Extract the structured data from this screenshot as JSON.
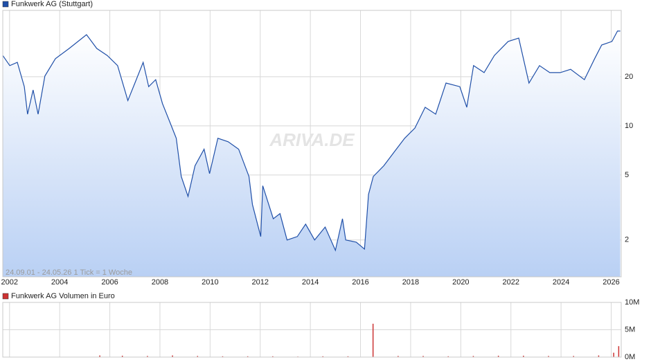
{
  "chart_data": [
    {
      "type": "line",
      "subtitle": "24.09.01 - 24.05.26   1 Tick = 1 Woche",
      "watermark": "ARIVA.DE",
      "log_scale": true,
      "grid": true,
      "legend": "top-left",
      "x": [
        2001.73,
        2002.01,
        2002.31,
        2002.59,
        2002.72,
        2002.94,
        2003.14,
        2003.41,
        2003.83,
        2004.38,
        2005.07,
        2005.48,
        2005.9,
        2006.31,
        2006.72,
        2007.0,
        2007.33,
        2007.55,
        2007.83,
        2008.1,
        2008.38,
        2008.65,
        2008.85,
        2009.12,
        2009.4,
        2009.76,
        2009.98,
        2010.31,
        2010.72,
        2011.14,
        2011.55,
        2011.69,
        2012.02,
        2012.1,
        2012.52,
        2012.79,
        2013.07,
        2013.48,
        2013.81,
        2014.17,
        2014.59,
        2015.0,
        2015.28,
        2015.41,
        2015.83,
        2016.16,
        2016.32,
        2016.51,
        2016.93,
        2017.34,
        2017.76,
        2018.17,
        2018.58,
        2019.0,
        2019.41,
        2019.96,
        2020.24,
        2020.51,
        2020.93,
        2021.34,
        2021.89,
        2022.31,
        2022.72,
        2023.14,
        2023.55,
        2023.97,
        2024.38,
        2024.93,
        2025.34,
        2025.62,
        2026.03,
        2026.25,
        2026.36
      ],
      "series": [
        {
          "name": "Funkwerk AG (Stuttgart)",
          "color": "#1f4fa8",
          "values": [
            27.0,
            23.4,
            24.5,
            17.4,
            11.8,
            16.6,
            11.8,
            20.2,
            25.8,
            29.8,
            36.2,
            29.8,
            27.0,
            23.4,
            14.3,
            18.3,
            24.5,
            17.4,
            19.2,
            13.7,
            10.7,
            8.4,
            4.9,
            3.7,
            5.7,
            7.2,
            5.1,
            8.4,
            8.0,
            7.2,
            4.9,
            3.3,
            2.1,
            4.3,
            2.7,
            2.9,
            2.0,
            2.1,
            2.5,
            2.0,
            2.4,
            1.73,
            2.7,
            2.0,
            1.94,
            1.76,
            3.8,
            4.9,
            5.7,
            6.9,
            8.4,
            9.7,
            13.0,
            11.8,
            18.3,
            17.4,
            13.0,
            23.4,
            21.2,
            27.0,
            32.9,
            34.5,
            18.3,
            23.4,
            21.2,
            21.2,
            22.2,
            19.2,
            25.8,
            31.3,
            32.9,
            38.1,
            38.1
          ]
        }
      ],
      "xlim": [
        2001.73,
        2026.4
      ],
      "xticks": [
        2002,
        2004,
        2006,
        2008,
        2010,
        2012,
        2014,
        2016,
        2018,
        2020,
        2022,
        2024,
        2026
      ],
      "ylim": [
        1.19,
        51
      ],
      "yticks": [
        2,
        5,
        10,
        20
      ]
    },
    {
      "type": "bar",
      "grid": true,
      "legend": "top-left",
      "x": [
        2005.6,
        2006.5,
        2007.5,
        2008.5,
        2009.5,
        2010.5,
        2011.5,
        2012.5,
        2013.5,
        2014.5,
        2015.5,
        2016.5,
        2017.5,
        2018.5,
        2019.5,
        2020.5,
        2021.5,
        2022.5,
        2023.5,
        2024.5,
        2025.5,
        2026.1,
        2026.3
      ],
      "series": [
        {
          "name": "Funkwerk AG Volumen in Euro",
          "color": "#cc3333",
          "values": [
            300000,
            250000,
            200000,
            300000,
            200000,
            150000,
            150000,
            150000,
            100000,
            150000,
            150000,
            6100000,
            200000,
            200000,
            150000,
            200000,
            250000,
            250000,
            200000,
            200000,
            300000,
            800000,
            2000000
          ]
        }
      ],
      "xlim": [
        2001.73,
        2026.4
      ],
      "xticks": [
        2002,
        2004,
        2006,
        2008,
        2010,
        2012,
        2014,
        2016,
        2018,
        2020,
        2022,
        2024,
        2026
      ],
      "ylim": [
        0,
        10000000
      ],
      "yticks": [
        {
          "value": 0,
          "label": "0M"
        },
        {
          "value": 5000000,
          "label": "5M"
        },
        {
          "value": 10000000,
          "label": "10M"
        }
      ]
    }
  ]
}
